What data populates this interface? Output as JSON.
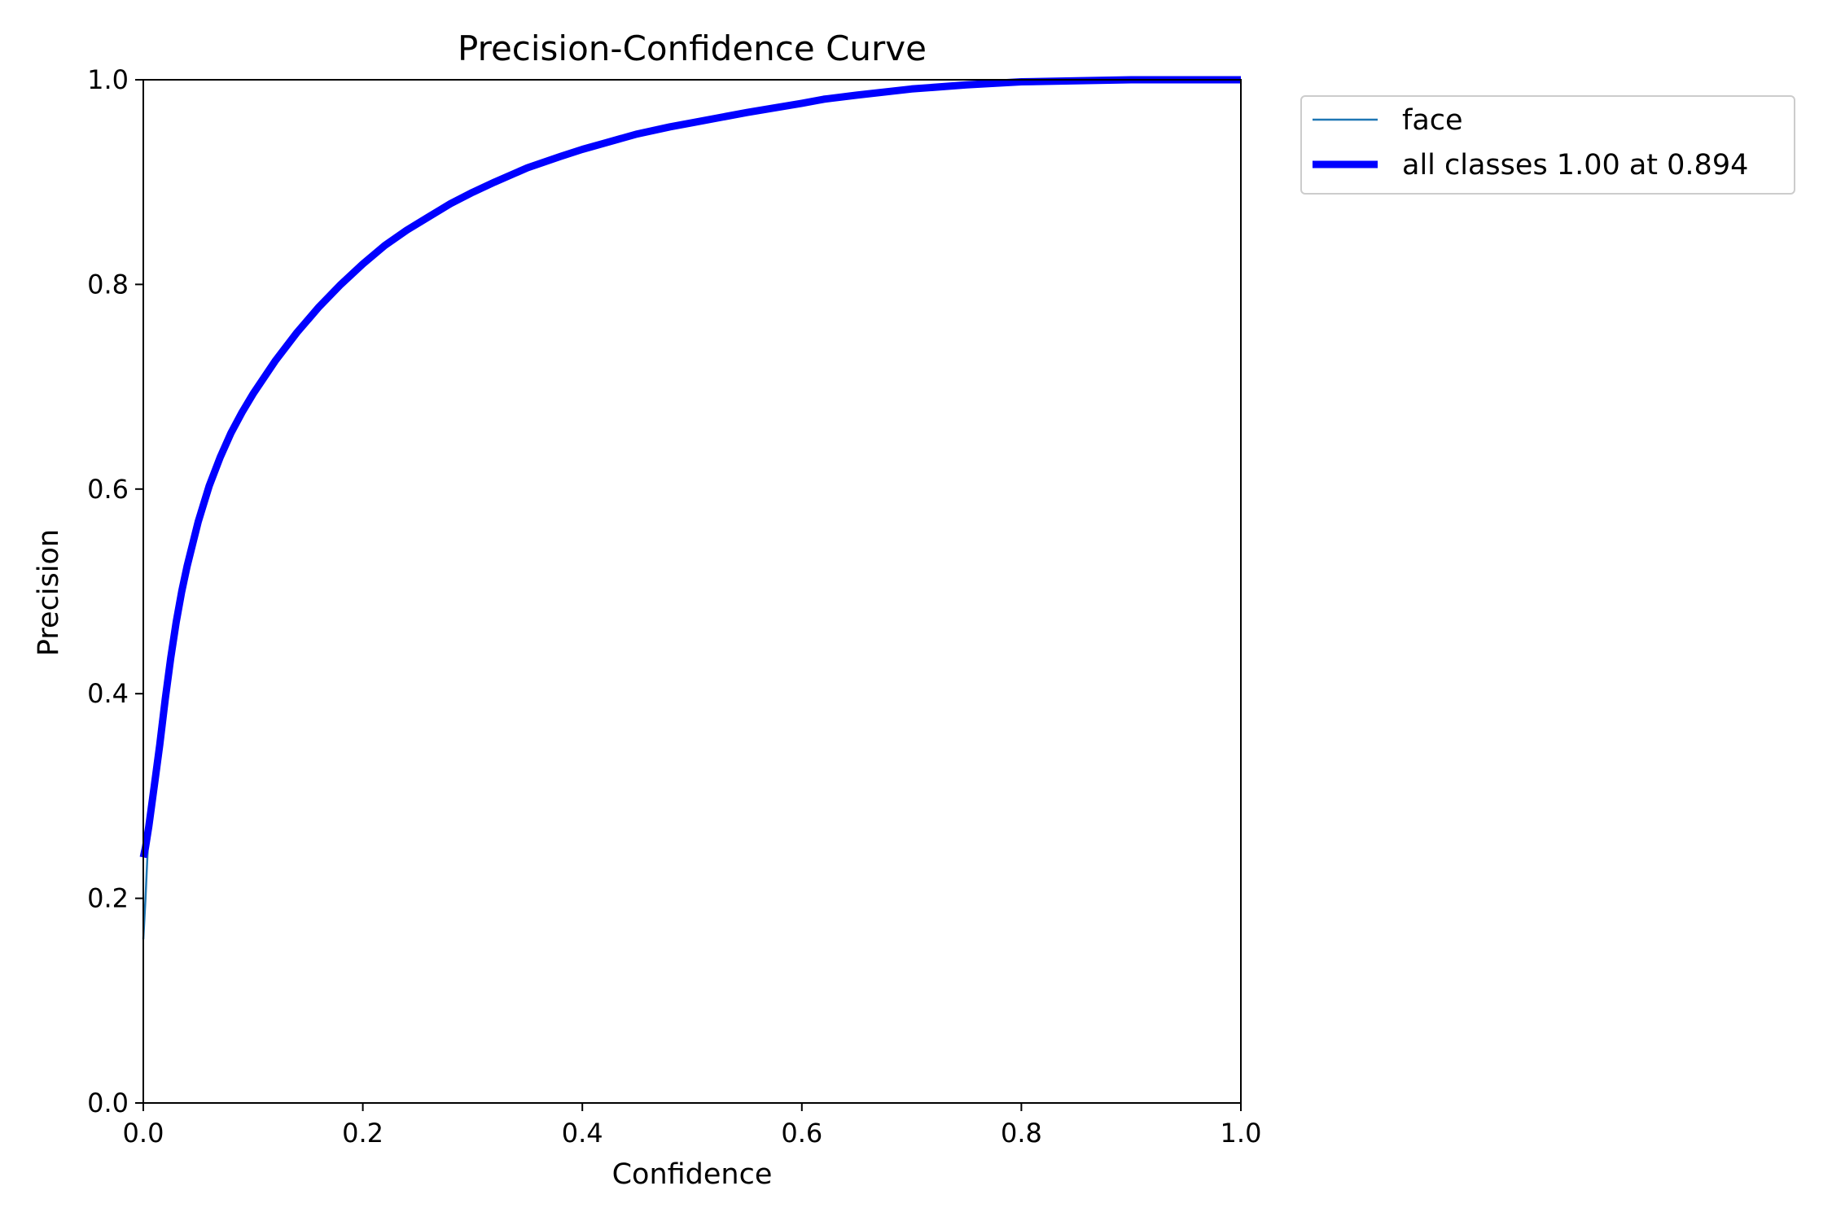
{
  "chart_data": {
    "type": "line",
    "title": "Precision-Confidence Curve",
    "xlabel": "Confidence",
    "ylabel": "Precision",
    "xlim": [
      0.0,
      1.0
    ],
    "ylim": [
      0.0,
      1.0
    ],
    "xticks": [
      "0.0",
      "0.2",
      "0.4",
      "0.6",
      "0.8",
      "1.0"
    ],
    "yticks": [
      "0.0",
      "0.2",
      "0.4",
      "0.6",
      "0.8",
      "1.0"
    ],
    "grid": false,
    "legend_position": "outside-top-right",
    "series": [
      {
        "name": "face",
        "color": "#1f77b4",
        "x": [
          0.0,
          0.002,
          0.005,
          0.01,
          0.015,
          0.02,
          0.025,
          0.03,
          0.035,
          0.04,
          0.05,
          0.06,
          0.07,
          0.08,
          0.09,
          0.1,
          0.12,
          0.14,
          0.16,
          0.18,
          0.2,
          0.22,
          0.24,
          0.26,
          0.28,
          0.3,
          0.32,
          0.35,
          0.38,
          0.4,
          0.42,
          0.45,
          0.48,
          0.5,
          0.55,
          0.6,
          0.62,
          0.65,
          0.7,
          0.75,
          0.8,
          0.85,
          0.9,
          1.0
        ],
        "y": [
          0.16,
          0.2,
          0.27,
          0.32,
          0.37,
          0.41,
          0.45,
          0.48,
          0.505,
          0.53,
          0.57,
          0.605,
          0.632,
          0.655,
          0.675,
          0.693,
          0.725,
          0.753,
          0.778,
          0.8,
          0.82,
          0.838,
          0.853,
          0.866,
          0.879,
          0.89,
          0.9,
          0.914,
          0.925,
          0.932,
          0.938,
          0.947,
          0.954,
          0.958,
          0.968,
          0.977,
          0.981,
          0.985,
          0.991,
          0.995,
          0.998,
          0.999,
          1.0,
          1.0
        ]
      },
      {
        "name": "all classes 1.00 at 0.894",
        "color": "#0000ff",
        "x": [
          0.0,
          0.002,
          0.005,
          0.01,
          0.015,
          0.02,
          0.025,
          0.03,
          0.035,
          0.04,
          0.05,
          0.06,
          0.07,
          0.08,
          0.09,
          0.1,
          0.12,
          0.14,
          0.16,
          0.18,
          0.2,
          0.22,
          0.24,
          0.26,
          0.28,
          0.3,
          0.32,
          0.35,
          0.38,
          0.4,
          0.42,
          0.45,
          0.48,
          0.5,
          0.55,
          0.6,
          0.62,
          0.65,
          0.7,
          0.75,
          0.8,
          0.85,
          0.9,
          1.0
        ],
        "y": [
          0.24,
          0.25,
          0.27,
          0.31,
          0.35,
          0.395,
          0.435,
          0.47,
          0.5,
          0.525,
          0.568,
          0.603,
          0.631,
          0.655,
          0.675,
          0.693,
          0.725,
          0.753,
          0.778,
          0.8,
          0.82,
          0.838,
          0.853,
          0.866,
          0.879,
          0.89,
          0.9,
          0.914,
          0.925,
          0.932,
          0.938,
          0.947,
          0.954,
          0.958,
          0.968,
          0.977,
          0.981,
          0.985,
          0.991,
          0.995,
          0.998,
          0.999,
          1.0,
          1.0
        ]
      }
    ]
  }
}
